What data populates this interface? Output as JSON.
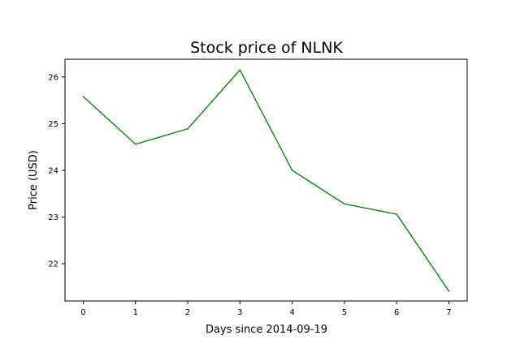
{
  "chart_data": {
    "type": "line",
    "title": "Stock price of NLNK",
    "xlabel": "Days since 2014-09-19",
    "ylabel": "Price (USD)",
    "x": [
      0,
      1,
      2,
      3,
      4,
      5,
      6,
      7
    ],
    "series": [
      {
        "name": "NLNK",
        "color": "#008000",
        "values": [
          25.58,
          24.56,
          24.89,
          26.15,
          24.0,
          23.28,
          23.06,
          21.41
        ]
      }
    ],
    "xticks": [
      0,
      1,
      2,
      3,
      4,
      5,
      6,
      7
    ],
    "yticks": [
      22,
      23,
      24,
      25,
      26
    ],
    "xlim": [
      -0.35,
      7.35
    ],
    "ylim": [
      21.2,
      26.38
    ],
    "grid": false,
    "legend": "none"
  }
}
